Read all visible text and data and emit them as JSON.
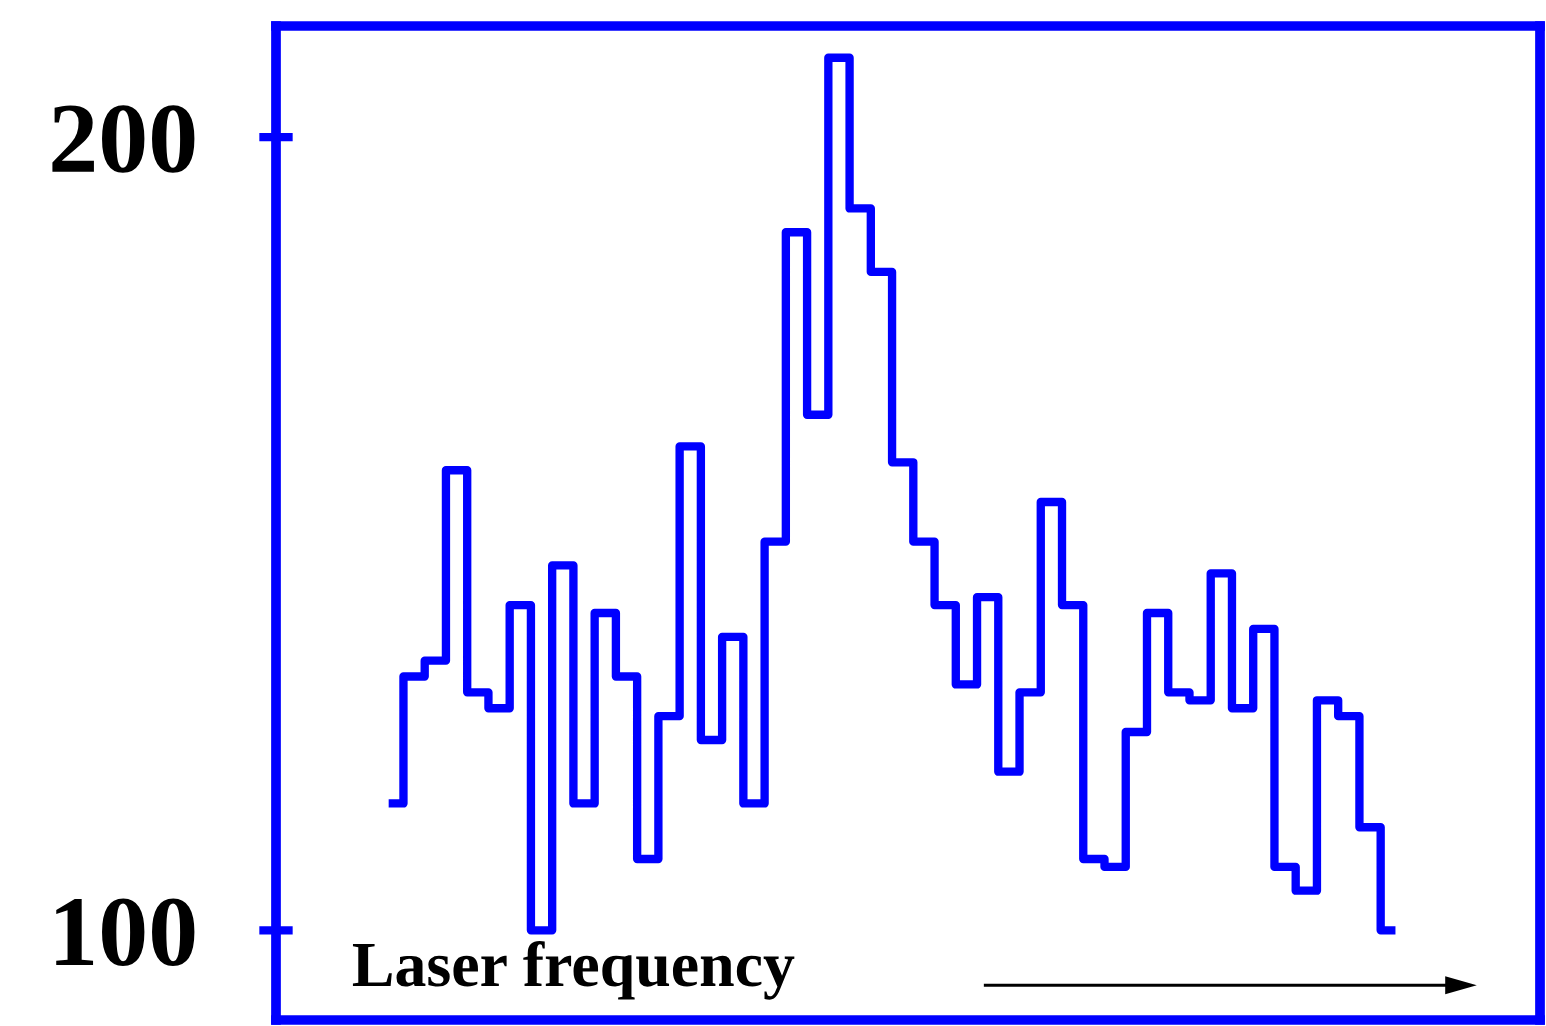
{
  "chart_data": {
    "type": "step",
    "categories": [
      null,
      null,
      null,
      null,
      null,
      null,
      null,
      null,
      null,
      null,
      null,
      null,
      null,
      null,
      null,
      null,
      null,
      null,
      null,
      null,
      null,
      null,
      null,
      null,
      null,
      null,
      null,
      null,
      null,
      null,
      null,
      null,
      null,
      null,
      null,
      null,
      null,
      null,
      null,
      null,
      null,
      null,
      null,
      null,
      null,
      null,
      null,
      null
    ],
    "series": [
      {
        "color": "#0000ff",
        "values": [
          116,
          132,
          134,
          158,
          130,
          128,
          141,
          100,
          146,
          116,
          140,
          132,
          109,
          127,
          161,
          124,
          137,
          116,
          149,
          188,
          165,
          210,
          191,
          183,
          159,
          149,
          141,
          131,
          142,
          120,
          130,
          154,
          141,
          109,
          108,
          125,
          140,
          130,
          129,
          145,
          128,
          138,
          108,
          105,
          129,
          127,
          113,
          100
        ]
      }
    ],
    "ylim": [
      88.7,
      214
    ],
    "yticks": [
      100,
      200
    ],
    "tick_labels": "y",
    "grid": false,
    "legend": false,
    "annotations": [
      "Laser frequency"
    ]
  }
}
